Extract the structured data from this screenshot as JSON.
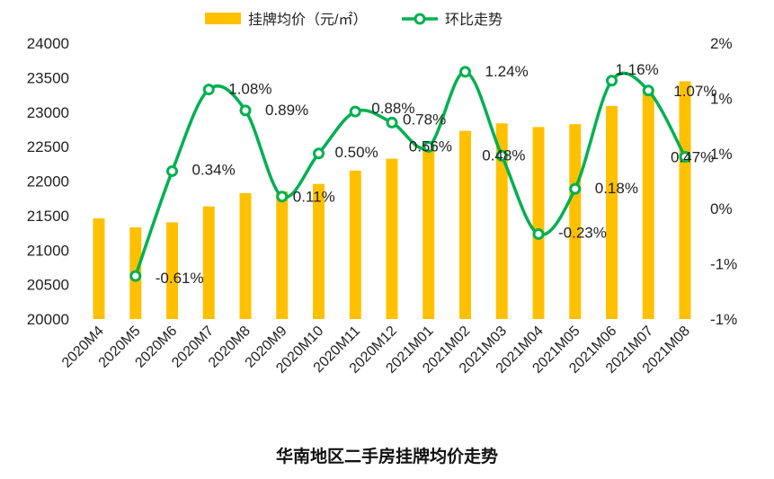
{
  "chart_data": {
    "type": "bar+line",
    "title": "华南地区二手房挂牌均价走势",
    "categories": [
      "2020M4",
      "2020M5",
      "2020M6",
      "2020M7",
      "2020M8",
      "2020M9",
      "2020M10",
      "2020M11",
      "2020M12",
      "2021M01",
      "2021M02",
      "2021M03",
      "2021M04",
      "2021M05",
      "2021M06",
      "2021M07",
      "2021M08"
    ],
    "series": [
      {
        "name": "挂牌均价（元/㎡）",
        "type": "bar",
        "axis": "left",
        "color": "#FFC000",
        "values": [
          21460,
          21329,
          21402,
          21633,
          21826,
          21850,
          21959,
          22152,
          22325,
          22450,
          22728,
          22837,
          22784,
          22825,
          23090,
          23337,
          23447
        ]
      },
      {
        "name": "环比走势",
        "type": "line",
        "axis": "right",
        "color": "#00B050",
        "values": [
          null,
          -0.61,
          0.34,
          1.08,
          0.89,
          0.11,
          0.5,
          0.88,
          0.78,
          0.56,
          1.24,
          0.48,
          -0.23,
          0.18,
          1.16,
          1.07,
          0.47
        ],
        "labels": [
          "",
          "-0.61%",
          "0.34%",
          "1.08%",
          "0.89%",
          "0.11%",
          "0.50%",
          "0.88%",
          "0.78%",
          "0.56%",
          "1.24%",
          "0.48%",
          "-0.23%",
          "0.18%",
          "1.16%",
          "1.07%",
          "0.47%"
        ]
      }
    ],
    "left_axis": {
      "range": [
        20000,
        24000
      ],
      "ticks": [
        "20000",
        "20500",
        "21000",
        "21500",
        "22000",
        "22500",
        "23000",
        "23500",
        "24000"
      ]
    },
    "right_axis": {
      "range": [
        -1.0,
        1.5
      ],
      "ticks": [
        "-1%",
        "-1%",
        "0%",
        "1%",
        "1%",
        "2%"
      ]
    },
    "legend": "top",
    "grid": false
  }
}
